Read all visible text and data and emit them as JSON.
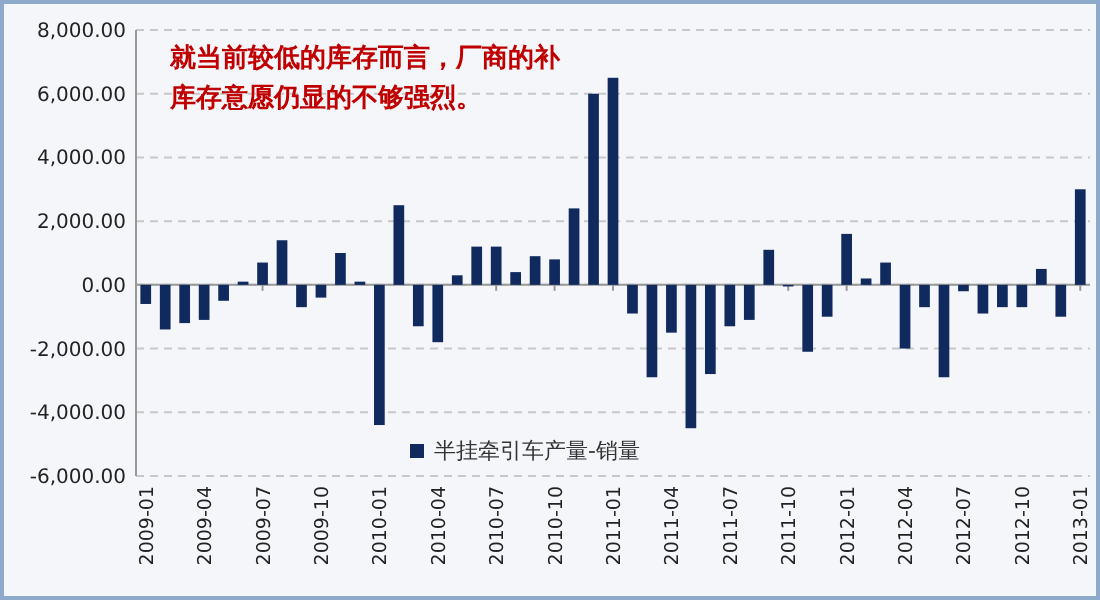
{
  "chart_data": {
    "type": "bar",
    "categories": [
      "2009-01",
      null,
      null,
      "2009-04",
      null,
      null,
      "2009-07",
      null,
      null,
      "2009-10",
      null,
      null,
      "2010-01",
      null,
      null,
      "2010-04",
      null,
      null,
      "2010-07",
      null,
      null,
      "2010-10",
      null,
      null,
      "2011-01",
      null,
      null,
      "2011-04",
      null,
      null,
      "2011-07",
      null,
      null,
      "2011-10",
      null,
      null,
      "2012-01",
      null,
      null,
      "2012-04",
      null,
      null,
      "2012-07",
      null,
      null,
      "2012-10",
      null,
      null,
      "2013-01"
    ],
    "series": [
      {
        "name": "半挂牵引车产量-销量",
        "color": "#102a5e",
        "values": [
          -600,
          -1400,
          -1200,
          -1100,
          -500,
          100,
          700,
          1400,
          -700,
          -400,
          1000,
          100,
          -4400,
          2500,
          -1300,
          -1800,
          300,
          1200,
          1200,
          400,
          900,
          800,
          2400,
          6000,
          6500,
          -900,
          -2900,
          -1500,
          -4500,
          -2800,
          -1300,
          -1100,
          1100,
          -50,
          -2100,
          -1000,
          1600,
          200,
          700,
          -2000,
          -700,
          -2900,
          -200,
          -900,
          -700,
          -700,
          500,
          -1000,
          3000
        ]
      }
    ],
    "ylim": [
      -6000,
      8000
    ],
    "yticks": [
      {
        "value": -6000,
        "label": "-6,000.00"
      },
      {
        "value": -4000,
        "label": "-4,000.00"
      },
      {
        "value": -2000,
        "label": "-2,000.00"
      },
      {
        "value": 0,
        "label": "0.00"
      },
      {
        "value": 2000,
        "label": "2,000.00"
      },
      {
        "value": 4000,
        "label": "4,000.00"
      },
      {
        "value": 6000,
        "label": "6,000.00"
      },
      {
        "value": 8000,
        "label": "8,000.00"
      }
    ],
    "grid": "y",
    "legend": "bottom",
    "annotations": [
      "就当前较低的库存而言，厂商的补库存意愿仍显的不够强烈。"
    ]
  }
}
